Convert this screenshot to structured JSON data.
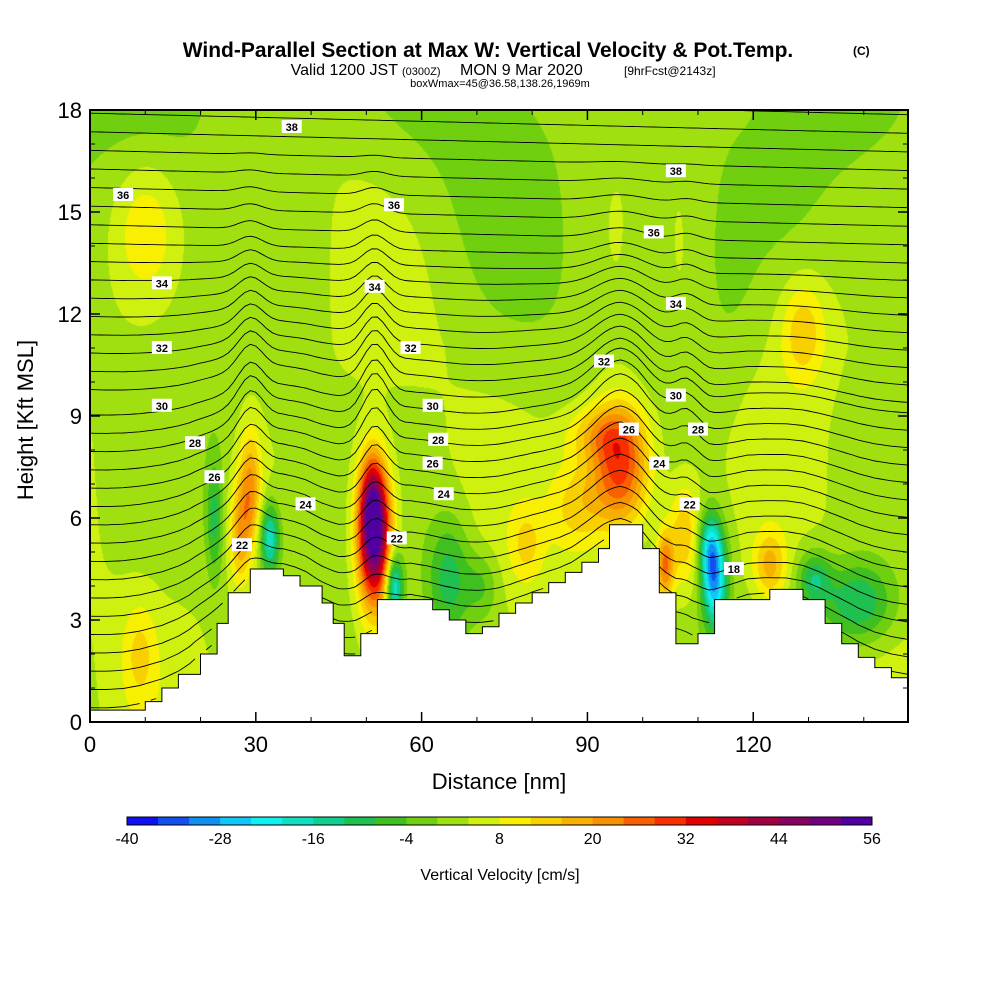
{
  "header": {
    "title": "Wind-Parallel Section at Max W: Vertical Velocity & Pot.Temp.",
    "title_mark": "(C)",
    "valid_prefix": "Valid 1200 JST",
    "valid_utc": "(0300Z)",
    "valid_date": "MON 9 Mar 2020",
    "forecast": "[9hrFcst@2143z]",
    "box_info": "boxWmax=45@36.58,138.26,1969m"
  },
  "chart_data": {
    "type": "contour cross-section",
    "xlabel": "Distance [nm]",
    "ylabel": "Height [Kft MSL]",
    "xlim": [
      0,
      148
    ],
    "ylim": [
      0,
      18
    ],
    "x_ticks": [
      0,
      30,
      60,
      90,
      120
    ],
    "y_ticks": [
      0,
      3,
      6,
      9,
      12,
      15,
      18
    ],
    "colorbar": {
      "label": "Vertical Velocity [cm/s]",
      "min": -40,
      "max": 56,
      "step": 4,
      "tick_labels": [
        "-40",
        "-28",
        "-16",
        "-4",
        "8",
        "20",
        "32",
        "44",
        "56"
      ],
      "colors": [
        "#1010f0",
        "#1050f0",
        "#1090f0",
        "#10c8f8",
        "#10f0f0",
        "#10e0c0",
        "#10d090",
        "#20c050",
        "#40c020",
        "#70d010",
        "#a0e010",
        "#d0f010",
        "#f8f000",
        "#f8d000",
        "#f8b000",
        "#f89000",
        "#f86000",
        "#f83000",
        "#e00000",
        "#c00020",
        "#a00040",
        "#880060",
        "#700080",
        "#5000a0"
      ]
    },
    "terrain_kft": [
      [
        0,
        0.35
      ],
      [
        10,
        0.35
      ],
      [
        10,
        0.6
      ],
      [
        13,
        0.6
      ],
      [
        13,
        1.0
      ],
      [
        16,
        1.0
      ],
      [
        16,
        1.4
      ],
      [
        20,
        1.4
      ],
      [
        20,
        2.0
      ],
      [
        23,
        2.0
      ],
      [
        23,
        2.9
      ],
      [
        25,
        2.9
      ],
      [
        25,
        3.8
      ],
      [
        29,
        3.8
      ],
      [
        29,
        4.5
      ],
      [
        35,
        4.5
      ],
      [
        35,
        4.3
      ],
      [
        38,
        4.3
      ],
      [
        38,
        4.0
      ],
      [
        42,
        4.0
      ],
      [
        42,
        3.5
      ],
      [
        44,
        3.5
      ],
      [
        44,
        2.9
      ],
      [
        46,
        2.9
      ],
      [
        46,
        1.95
      ],
      [
        49,
        1.95
      ],
      [
        49,
        2.6
      ],
      [
        52,
        2.6
      ],
      [
        52,
        3.6
      ],
      [
        62,
        3.6
      ],
      [
        62,
        3.3
      ],
      [
        65,
        3.3
      ],
      [
        65,
        3.0
      ],
      [
        68,
        3.0
      ],
      [
        68,
        2.6
      ],
      [
        71,
        2.6
      ],
      [
        71,
        2.8
      ],
      [
        74,
        2.8
      ],
      [
        74,
        3.2
      ],
      [
        77,
        3.2
      ],
      [
        77,
        3.5
      ],
      [
        80,
        3.5
      ],
      [
        80,
        3.8
      ],
      [
        83,
        3.8
      ],
      [
        83,
        4.1
      ],
      [
        86,
        4.1
      ],
      [
        86,
        4.4
      ],
      [
        89,
        4.4
      ],
      [
        89,
        4.7
      ],
      [
        92,
        4.7
      ],
      [
        92,
        5.1
      ],
      [
        94,
        5.1
      ],
      [
        94,
        5.8
      ],
      [
        100,
        5.8
      ],
      [
        100,
        5.1
      ],
      [
        103,
        5.1
      ],
      [
        103,
        3.8
      ],
      [
        106,
        3.8
      ],
      [
        106,
        2.3
      ],
      [
        110,
        2.3
      ],
      [
        110,
        2.6
      ],
      [
        113,
        2.6
      ],
      [
        113,
        3.6
      ],
      [
        123,
        3.6
      ],
      [
        123,
        3.9
      ],
      [
        129,
        3.9
      ],
      [
        129,
        3.6
      ],
      [
        133,
        3.6
      ],
      [
        133,
        2.9
      ],
      [
        136,
        2.9
      ],
      [
        136,
        2.3
      ],
      [
        139,
        2.3
      ],
      [
        139,
        1.9
      ],
      [
        142,
        1.9
      ],
      [
        142,
        1.6
      ],
      [
        145,
        1.6
      ],
      [
        145,
        1.3
      ],
      [
        148,
        1.3
      ]
    ],
    "velocity_features": [
      {
        "x": 51.5,
        "y": 5.4,
        "dx": 3.0,
        "dy": 2.0,
        "w": 50
      },
      {
        "x": 51.0,
        "y": 6.5,
        "dx": 2.2,
        "dy": 1.4,
        "w": 22
      },
      {
        "x": 55.0,
        "y": 4.0,
        "dx": 1.6,
        "dy": 1.0,
        "w": -26
      },
      {
        "x": 29.0,
        "y": 6.8,
        "dx": 2.0,
        "dy": 1.8,
        "w": 18
      },
      {
        "x": 27.0,
        "y": 5.5,
        "dx": 1.8,
        "dy": 1.5,
        "w": 14
      },
      {
        "x": 32.5,
        "y": 5.4,
        "dx": 1.8,
        "dy": 1.0,
        "w": -22
      },
      {
        "x": 22.5,
        "y": 6.0,
        "dx": 1.5,
        "dy": 1.8,
        "w": -12
      },
      {
        "x": 96.0,
        "y": 7.5,
        "dx": 5.5,
        "dy": 1.9,
        "w": 30
      },
      {
        "x": 88.0,
        "y": 6.3,
        "dx": 5.0,
        "dy": 1.4,
        "w": 10
      },
      {
        "x": 79.0,
        "y": 5.2,
        "dx": 3.0,
        "dy": 1.1,
        "w": 8
      },
      {
        "x": 107.5,
        "y": 5.5,
        "dx": 3.0,
        "dy": 1.6,
        "w": 14
      },
      {
        "x": 104.0,
        "y": 4.6,
        "dx": 1.6,
        "dy": 1.0,
        "w": 22
      },
      {
        "x": 113.0,
        "y": 4.2,
        "dx": 2.2,
        "dy": 1.4,
        "w": -30
      },
      {
        "x": 112.0,
        "y": 5.2,
        "dx": 2.0,
        "dy": 1.0,
        "w": -16
      },
      {
        "x": 123.0,
        "y": 4.6,
        "dx": 3.0,
        "dy": 1.0,
        "w": 14
      },
      {
        "x": 139.0,
        "y": 3.5,
        "dx": 6.5,
        "dy": 1.2,
        "w": -16
      },
      {
        "x": 131.0,
        "y": 4.2,
        "dx": 3.0,
        "dy": 0.8,
        "w": -14
      },
      {
        "x": 65.0,
        "y": 4.2,
        "dx": 4.0,
        "dy": 1.8,
        "w": -14
      },
      {
        "x": 71.0,
        "y": 4.0,
        "dx": 3.0,
        "dy": 1.0,
        "w": -8
      },
      {
        "x": 101.0,
        "y": 14.0,
        "dx": 4.0,
        "dy": 3.5,
        "w": -4
      },
      {
        "x": 115.0,
        "y": 13.0,
        "dx": 5.0,
        "dy": 4.0,
        "w": -3
      },
      {
        "x": 129.0,
        "y": 11.5,
        "dx": 4.0,
        "dy": 1.5,
        "w": 12
      },
      {
        "x": 10.0,
        "y": 14.5,
        "dx": 6.0,
        "dy": 2.0,
        "w": 9
      },
      {
        "x": 9.0,
        "y": 2.0,
        "dx": 3.0,
        "dy": 1.5,
        "w": 8
      },
      {
        "x": 92.0,
        "y": 8.5,
        "dx": 6.0,
        "dy": 0.8,
        "w": 10
      }
    ],
    "theta_contour_labels": [
      {
        "x": 36.5,
        "y": 17.5,
        "text": "38"
      },
      {
        "x": 6,
        "y": 15.5,
        "text": "36"
      },
      {
        "x": 55,
        "y": 15.2,
        "text": "36"
      },
      {
        "x": 106,
        "y": 16.2,
        "text": "38"
      },
      {
        "x": 102,
        "y": 14.4,
        "text": "36"
      },
      {
        "x": 13,
        "y": 12.9,
        "text": "34"
      },
      {
        "x": 51.5,
        "y": 12.8,
        "text": "34"
      },
      {
        "x": 106,
        "y": 12.3,
        "text": "34"
      },
      {
        "x": 13,
        "y": 11.0,
        "text": "32"
      },
      {
        "x": 58,
        "y": 11.0,
        "text": "32"
      },
      {
        "x": 93,
        "y": 10.6,
        "text": "32"
      },
      {
        "x": 13,
        "y": 9.3,
        "text": "30"
      },
      {
        "x": 62,
        "y": 9.3,
        "text": "30"
      },
      {
        "x": 106,
        "y": 9.6,
        "text": "30"
      },
      {
        "x": 19,
        "y": 8.2,
        "text": "28"
      },
      {
        "x": 63,
        "y": 8.3,
        "text": "28"
      },
      {
        "x": 110,
        "y": 8.6,
        "text": "28"
      },
      {
        "x": 62,
        "y": 7.6,
        "text": "26"
      },
      {
        "x": 22.5,
        "y": 7.2,
        "text": "26"
      },
      {
        "x": 97.5,
        "y": 8.6,
        "text": "26"
      },
      {
        "x": 39,
        "y": 6.4,
        "text": "24"
      },
      {
        "x": 64,
        "y": 6.7,
        "text": "24"
      },
      {
        "x": 103,
        "y": 7.6,
        "text": "24"
      },
      {
        "x": 27.5,
        "y": 5.2,
        "text": "22"
      },
      {
        "x": 55.5,
        "y": 5.4,
        "text": "22"
      },
      {
        "x": 108.5,
        "y": 6.4,
        "text": "22"
      },
      {
        "x": 116.5,
        "y": 4.5,
        "text": "18"
      }
    ]
  }
}
